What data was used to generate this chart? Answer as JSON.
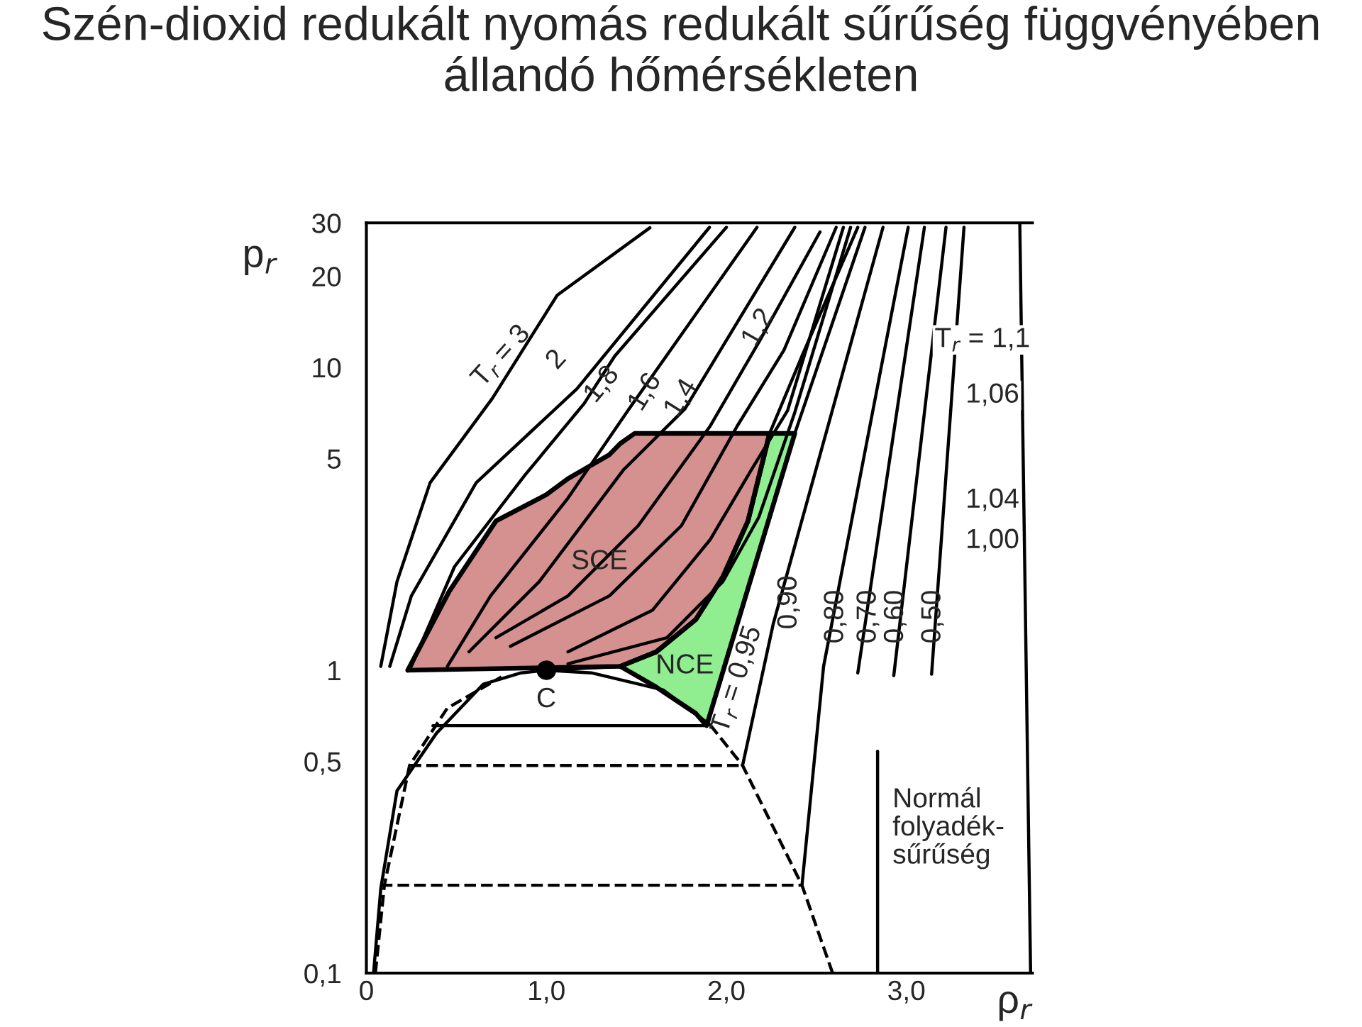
{
  "chart_data": {
    "type": "line",
    "title": "Szén-dioxid redukált nyomás redukált sűrűség függvényében állandó hőmérsékleten",
    "xlabel": "ρ$_{r}$",
    "ylabel": "p$_{r}$",
    "log": "y",
    "grid": false,
    "legend": false,
    "xlim": [
      0,
      3.7
    ],
    "ylim": [
      0.1,
      30
    ],
    "xticks": [
      0,
      {
        "value": 1,
        "label": "1,0"
      },
      {
        "value": 2,
        "label": "2,0"
      },
      {
        "value": 3,
        "label": "3,0"
      }
    ],
    "yticks": [
      {
        "value": 0.1,
        "label": "0,1"
      },
      {
        "value": 0.5,
        "label": "0,5"
      },
      1,
      5,
      10,
      20,
      30
    ],
    "series": [
      {
        "type": "area",
        "color": "#d4918f",
        "x": [
          0.23,
          0.46,
          0.72,
          1.0,
          1.12,
          1.35,
          1.41,
          1.49,
          2.24,
          2.12,
          1.98,
          1.83,
          1.61,
          1.41,
          0.23
        ],
        "values": [
          1.0,
          1.82,
          3.11,
          3.8,
          4.29,
          5.15,
          5.6,
          6.05,
          6.05,
          3.11,
          2.03,
          1.47,
          1.15,
          1.03,
          1.0
        ]
      },
      {
        "type": "area",
        "color": "#90ee90",
        "x": [
          1.41,
          1.61,
          1.83,
          1.98,
          2.12,
          2.24,
          2.38,
          1.89,
          1.83,
          1.61,
          1.41
        ],
        "values": [
          1.03,
          1.15,
          1.47,
          2.03,
          3.11,
          6.05,
          6.05,
          0.656,
          0.72,
          0.88,
          1.03
        ]
      },
      {
        "color": "#000000",
        "line_style": "solid",
        "x": [
          0.08,
          0.17,
          0.354,
          0.7,
          1.06,
          1.575
        ],
        "values": [
          1.03,
          1.96,
          4.16,
          7.9,
          17.3,
          28.9
        ]
      },
      {
        "color": "#000000",
        "line_style": "solid",
        "x": [
          0.13,
          0.25,
          0.61,
          1.17,
          1.906
        ],
        "values": [
          1.03,
          1.76,
          4.16,
          8.5,
          29
        ]
      },
      {
        "color": "#000000",
        "line_style": "solid",
        "x": [
          0.25,
          0.49,
          0.88,
          1.21,
          1.38,
          2.0
        ],
        "values": [
          1.03,
          2.2,
          4.4,
          7.6,
          10.9,
          29
        ]
      },
      {
        "color": "#000000",
        "line_style": "solid",
        "x": [
          0.45,
          0.69,
          1.12,
          1.46,
          2.17
        ],
        "values": [
          1.03,
          1.76,
          3.7,
          7.3,
          29
        ]
      },
      {
        "color": "#000000",
        "line_style": "solid",
        "x": [
          0.57,
          0.96,
          1.43,
          1.77,
          2.38
        ],
        "values": [
          1.15,
          1.96,
          4.6,
          7.3,
          29
        ]
      },
      {
        "color": "#000000",
        "line_style": "solid",
        "x": [
          0.72,
          1.12,
          1.51,
          1.91,
          2.18,
          2.52
        ],
        "values": [
          1.28,
          1.76,
          3.0,
          6.4,
          12.1,
          28
        ]
      },
      {
        "color": "#000000",
        "line_style": "solid",
        "x": [
          0.8,
          1.35,
          1.75,
          2.06,
          2.32,
          2.61
        ],
        "values": [
          1.2,
          1.76,
          3.0,
          6.4,
          11.4,
          29
        ]
      },
      {
        "color": "#000000",
        "line_style": "solid",
        "x": [
          1.12,
          1.59,
          1.91,
          2.14,
          2.34,
          2.65
        ],
        "values": [
          1.15,
          1.58,
          2.7,
          4.6,
          7.2,
          29
        ]
      },
      {
        "color": "#000000",
        "line_style": "solid",
        "x": [
          1.12,
          1.67,
          1.98,
          2.18,
          2.38,
          2.69
        ],
        "values": [
          1.05,
          1.28,
          1.96,
          3.2,
          7.1,
          29
        ]
      },
      {
        "color": "#000000",
        "line_style": "solid",
        "x": [
          1.0,
          1.41,
          1.61,
          1.83,
          1.98,
          2.12,
          2.24,
          2.42,
          2.73
        ],
        "values": [
          1.0,
          1.03,
          1.15,
          1.47,
          2.03,
          3.11,
          6.05,
          10.9,
          29
        ]
      },
      {
        "color": "#000000",
        "line_style": "solid",
        "x": [
          1.89,
          2.38,
          2.77
        ],
        "values": [
          0.656,
          6.05,
          29
        ]
      },
      {
        "color": "#000000",
        "line_style": "solid",
        "x": [
          2.09,
          2.26,
          2.87
        ],
        "values": [
          0.485,
          1.42,
          29
        ]
      },
      {
        "color": "#000000",
        "line_style": "solid",
        "x": [
          2.42,
          2.54,
          3.01
        ],
        "values": [
          0.195,
          1.03,
          29
        ]
      },
      {
        "color": "#000000",
        "line_style": "solid",
        "x": [
          2.73,
          3.1
        ],
        "values": [
          0.98,
          29
        ]
      },
      {
        "color": "#000000",
        "line_style": "solid",
        "x": [
          2.93,
          3.22
        ],
        "values": [
          0.96,
          29
        ]
      },
      {
        "color": "#000000",
        "line_style": "solid",
        "x": [
          3.14,
          3.32
        ],
        "values": [
          0.97,
          29
        ]
      },
      {
        "color": "#000000",
        "line_style": "solid",
        "x": [
          3.69,
          3.63
        ],
        "values": [
          0.1,
          30
        ]
      },
      {
        "color": "#000000",
        "line_style": "solid",
        "x": [
          2.84,
          2.84
        ],
        "values": [
          0.1,
          0.54
        ]
      },
      {
        "color": "#000000",
        "line_style": "solid",
        "x": [
          0.04,
          0.08,
          0.17,
          0.39,
          0.65,
          0.86,
          1.0
        ],
        "values": [
          0.1,
          0.19,
          0.4,
          0.62,
          0.9,
          0.98,
          1.0
        ]
      },
      {
        "color": "#000000",
        "line_style": "solid",
        "x": [
          1.0,
          1.25,
          1.65,
          1.91
        ],
        "values": [
          1.0,
          0.98,
          0.86,
          0.66
        ]
      },
      {
        "color": "#000000",
        "line_style": "dashed",
        "x": [
          1.91,
          2.09,
          2.42,
          2.59
        ],
        "values": [
          0.66,
          0.485,
          0.195,
          0.1
        ]
      },
      {
        "color": "#000000",
        "line_style": "dashed",
        "x": [
          0.05,
          0.1,
          0.24,
          0.45,
          0.75
        ],
        "values": [
          0.1,
          0.195,
          0.485,
          0.75,
          0.95
        ]
      },
      {
        "color": "#000000",
        "line_style": "solid",
        "x": [
          0.37,
          1.89
        ],
        "values": [
          0.656,
          0.656
        ]
      },
      {
        "color": "#000000",
        "line_style": "dashed",
        "x": [
          0.24,
          2.09
        ],
        "values": [
          0.485,
          0.485
        ]
      },
      {
        "color": "#000000",
        "line_style": "dashed",
        "x": [
          0.08,
          2.42
        ],
        "values": [
          0.195,
          0.195
        ]
      },
      {
        "type": "scatter",
        "marker": "circle",
        "color": "#000000",
        "x": [
          1.0
        ],
        "values": [
          1.0
        ]
      }
    ],
    "annotations": [
      "T$_{r}$ = 3",
      "2",
      "1,8",
      "1,6",
      "1,4",
      "1,2",
      "T$_{r}$ = 1,1",
      "1,06",
      "1,04",
      "1,00",
      "0,90",
      "0,80",
      "0,70",
      "0,60",
      "0,50",
      "T$_{r}$ = 0,95",
      "SCE",
      "NCE",
      "C",
      "Normál\nfolyadék-\nsűrűség"
    ]
  }
}
